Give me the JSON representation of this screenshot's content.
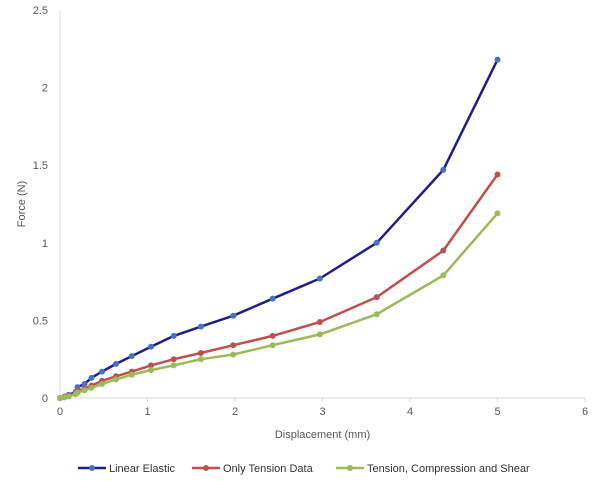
{
  "chart_data": {
    "type": "line",
    "title": "",
    "xlabel": "Displacement (mm)",
    "ylabel": "Force (N)",
    "xlim": [
      0,
      6
    ],
    "ylim": [
      0,
      2.5
    ],
    "x_ticks": [
      0,
      1,
      2,
      3,
      4,
      5,
      6
    ],
    "y_ticks": [
      0,
      0.5,
      1,
      1.5,
      2,
      2.5
    ],
    "grid": false,
    "legend_position": "bottom",
    "series": [
      {
        "name": "Linear Elastic",
        "color": "#1f1f8c",
        "marker_color": "#4472c4",
        "points": [
          [
            0,
            0
          ],
          [
            0.05,
            0.01
          ],
          [
            0.1,
            0.02
          ],
          [
            0.18,
            0.04
          ],
          [
            0.2,
            0.07
          ],
          [
            0.28,
            0.09
          ],
          [
            0.36,
            0.13
          ],
          [
            0.48,
            0.17
          ],
          [
            0.64,
            0.22
          ],
          [
            0.82,
            0.27
          ],
          [
            1.04,
            0.33
          ],
          [
            1.3,
            0.4
          ],
          [
            1.61,
            0.46
          ],
          [
            1.98,
            0.53
          ],
          [
            2.43,
            0.64
          ],
          [
            2.97,
            0.77
          ],
          [
            3.62,
            1.0
          ],
          [
            4.38,
            1.47
          ],
          [
            5.0,
            2.18
          ]
        ]
      },
      {
        "name": "Only Tension Data",
        "color": "#c0504d",
        "marker_color": "#c0504d",
        "points": [
          [
            0,
            0
          ],
          [
            0.05,
            0.005
          ],
          [
            0.1,
            0.015
          ],
          [
            0.18,
            0.03
          ],
          [
            0.2,
            0.045
          ],
          [
            0.28,
            0.06
          ],
          [
            0.36,
            0.08
          ],
          [
            0.48,
            0.11
          ],
          [
            0.64,
            0.14
          ],
          [
            0.82,
            0.17
          ],
          [
            1.04,
            0.21
          ],
          [
            1.3,
            0.25
          ],
          [
            1.61,
            0.29
          ],
          [
            1.98,
            0.34
          ],
          [
            2.43,
            0.4
          ],
          [
            2.97,
            0.49
          ],
          [
            3.62,
            0.65
          ],
          [
            4.38,
            0.95
          ],
          [
            5.0,
            1.44
          ]
        ]
      },
      {
        "name": "Tension, Compression and Shear",
        "color": "#9bbb59",
        "marker_color": "#9bbb59",
        "points": [
          [
            0,
            0
          ],
          [
            0.05,
            0.005
          ],
          [
            0.1,
            0.01
          ],
          [
            0.18,
            0.025
          ],
          [
            0.2,
            0.035
          ],
          [
            0.28,
            0.05
          ],
          [
            0.36,
            0.065
          ],
          [
            0.48,
            0.09
          ],
          [
            0.64,
            0.12
          ],
          [
            0.82,
            0.15
          ],
          [
            1.04,
            0.18
          ],
          [
            1.3,
            0.21
          ],
          [
            1.61,
            0.25
          ],
          [
            1.98,
            0.28
          ],
          [
            2.43,
            0.34
          ],
          [
            2.97,
            0.41
          ],
          [
            3.62,
            0.54
          ],
          [
            4.38,
            0.79
          ],
          [
            5.0,
            1.19
          ]
        ]
      }
    ]
  }
}
